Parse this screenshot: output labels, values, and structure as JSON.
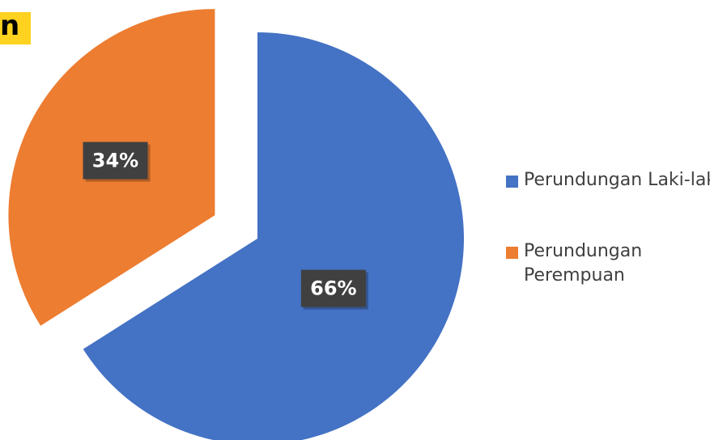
{
  "chart_data": {
    "type": "pie",
    "title": "n",
    "categories": [
      "Perundungan Laki-laki",
      "Perundungan Perempuan"
    ],
    "values": [
      66,
      34
    ],
    "value_labels": [
      "66%",
      "34%"
    ],
    "colors": [
      "#4472c4",
      "#ed7d31"
    ],
    "legend": "right"
  }
}
